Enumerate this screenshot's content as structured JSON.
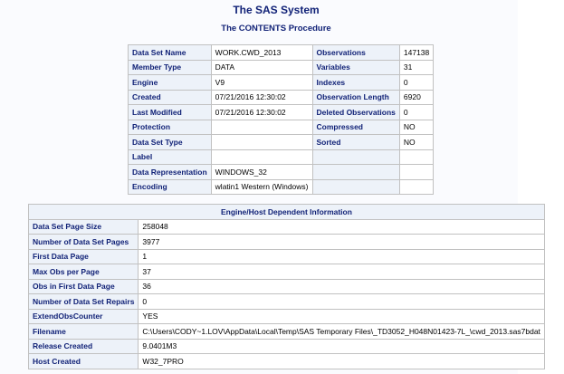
{
  "title": "The SAS System",
  "procedure": "The CONTENTS Procedure",
  "attributes": [
    [
      "Data Set Name",
      "WORK.CWD_2013",
      "Observations",
      "147138"
    ],
    [
      "Member Type",
      "DATA",
      "Variables",
      "31"
    ],
    [
      "Engine",
      "V9",
      "Indexes",
      "0"
    ],
    [
      "Created",
      "07/21/2016 12:30:02",
      "Observation Length",
      "6920"
    ],
    [
      "Last Modified",
      "07/21/2016 12:30:02",
      "Deleted Observations",
      "0"
    ],
    [
      "Protection",
      "",
      "Compressed",
      "NO"
    ],
    [
      "Data Set Type",
      "",
      "Sorted",
      "NO"
    ],
    [
      "Label",
      "",
      "",
      ""
    ],
    [
      "Data Representation",
      "WINDOWS_32",
      "",
      ""
    ],
    [
      "Encoding",
      "wlatin1 Western (Windows)",
      "",
      ""
    ]
  ],
  "engine_info": {
    "header": "Engine/Host Dependent Information",
    "rows": [
      [
        "Data Set Page Size",
        "258048"
      ],
      [
        "Number of Data Set Pages",
        "3977"
      ],
      [
        "First Data Page",
        "1"
      ],
      [
        "Max Obs per Page",
        "37"
      ],
      [
        "Obs in First Data Page",
        "36"
      ],
      [
        "Number of Data Set Repairs",
        "0"
      ],
      [
        "ExtendObsCounter",
        "YES"
      ],
      [
        "Filename",
        "C:\\Users\\CODY~1.LOV\\AppData\\Local\\Temp\\SAS Temporary Files\\_TD3052_H048N01423-7L_\\cwd_2013.sas7bdat"
      ],
      [
        "Release Created",
        "9.0401M3"
      ],
      [
        "Host Created",
        "W32_7PRO"
      ]
    ]
  }
}
